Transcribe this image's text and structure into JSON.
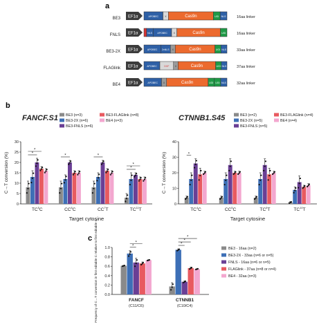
{
  "colors": {
    "be3": "#8a8a8a",
    "be3_2x": "#3d6fb6",
    "fnls": "#6a3f95",
    "flaglink": "#e85a60",
    "be4": "#f3a7cf",
    "ef1a": "#3c3c3c",
    "apobec": "#2e60a6",
    "cas9n": "#ec6a2e",
    "ugi": "#1f9a47",
    "nls": "#2e60a6",
    "flag": "#d63535",
    "linker": "#d9d9d9",
    "linker_long": "#9a9a9a",
    "xhead": "#333333"
  },
  "panel_a": {
    "label": "a",
    "constructs": [
      {
        "name": "BE3",
        "promoter": "EF1α",
        "parts": [
          "APOBEC",
          "X",
          "Cas9n",
          "UGI",
          "NLS"
        ],
        "linker": "16aa linker"
      },
      {
        "name": "FNLS",
        "promoter": "EF1α",
        "parts": [
          "F",
          "NLS",
          "APOBEC",
          "X",
          "Cas9n",
          "UGI"
        ],
        "linker": "16aa linker"
      },
      {
        "name": "BE3-2X",
        "promoter": "EF1α",
        "parts": [
          "APOBEC",
          "2xNLS",
          "X",
          "Cas9n",
          "UGI",
          "NLS"
        ],
        "linker": "33aa linker"
      },
      {
        "name": "FLAGlink",
        "promoter": "EF1α",
        "parts": [
          "APOBEC",
          "DXF",
          "X",
          "Cas9n",
          "UGI",
          "NLS"
        ],
        "linker": "37aa linker"
      },
      {
        "name": "BE4",
        "promoter": "EF1α",
        "parts": [
          "APOBEC",
          "X",
          "Cas9n",
          "UGI",
          "UGI",
          "NLS"
        ],
        "linker": "32aa linker"
      }
    ]
  },
  "panel_b": {
    "label": "b",
    "chart_data": [
      {
        "type": "bar",
        "title": "FANCF.S1",
        "xlabel": "Target cytosine",
        "ylabel": "C→T conversion (%)",
        "ylim": [
          0,
          30
        ],
        "yticks": [
          "0",
          "5",
          "10",
          "15",
          "20",
          "25",
          "30"
        ],
        "categories": [
          "TC5C",
          "CC6C",
          "CC7T",
          "TC11T"
        ],
        "category_labels": [
          {
            "base": "TC",
            "sup": "5",
            "tail": "C"
          },
          {
            "base": "CC",
            "sup": "6",
            "tail": "C"
          },
          {
            "base": "CC",
            "sup": "7",
            "tail": "T"
          },
          {
            "base": "TC",
            "sup": "11",
            "tail": "T"
          }
        ],
        "series": [
          {
            "name": "BE3 (n=3)",
            "values": [
              8,
              8,
              8,
              3
            ],
            "errors": [
              3,
              3,
              3,
              2
            ]
          },
          {
            "name": "BE3-2X (n=6)",
            "values": [
              13,
              12,
              13,
              12
            ],
            "errors": [
              3,
              2,
              2,
              3
            ]
          },
          {
            "name": "BE3-FNLS (n=6)",
            "values": [
              20,
              20,
              20,
              14
            ],
            "errors": [
              2,
              1,
              1,
              1
            ]
          },
          {
            "name": "BE3-FLAGlink (n=8)",
            "values": [
              17,
              15,
              16,
              12
            ],
            "errors": [
              1,
              1,
              1,
              1
            ]
          },
          {
            "name": "BE4 (n=3)",
            "values": [
              16,
              15,
              15,
              12
            ],
            "errors": [
              1,
              1,
              1,
              1
            ]
          }
        ],
        "significance": [
          {
            "category": 0,
            "from": 0,
            "to": 2,
            "label": "*"
          },
          {
            "category": 0,
            "from": 0,
            "to": 3,
            "label": "*"
          },
          {
            "category": 1,
            "from": 0,
            "to": 2,
            "label": "*"
          },
          {
            "category": 2,
            "from": 0,
            "to": 2,
            "label": "*"
          },
          {
            "category": 3,
            "from": 0,
            "to": 2,
            "label": "*"
          },
          {
            "category": 3,
            "from": 0,
            "to": 3,
            "label": "*"
          }
        ],
        "legend_placement": "top"
      },
      {
        "type": "bar",
        "title": "CTNNB1.S45",
        "xlabel": "Target cytosine",
        "ylabel": "C→T conversion (%)",
        "ylim": [
          0,
          40
        ],
        "yticks": [
          "0",
          "10",
          "20",
          "30",
          "40"
        ],
        "categories": [
          "TC4C",
          "CC5C",
          "TC6T",
          "TC10T"
        ],
        "category_labels": [
          {
            "base": "TC",
            "sup": "4",
            "tail": "C"
          },
          {
            "base": "CC",
            "sup": "5",
            "tail": "C"
          },
          {
            "base": "TC",
            "sup": "6",
            "tail": "T"
          },
          {
            "base": "TC",
            "sup": "10",
            "tail": "T"
          }
        ],
        "series": [
          {
            "name": "BE3 (n=2)",
            "values": [
              4,
              4,
              4,
              1
            ],
            "errors": [
              1,
              1,
              1,
              0.5
            ]
          },
          {
            "name": "BE3-2X (n=5)",
            "values": [
              16,
              16,
              16,
              9
            ],
            "errors": [
              4,
              4,
              4,
              2
            ]
          },
          {
            "name": "BE3-FNLS (n=5)",
            "values": [
              26,
              25,
              25,
              14
            ],
            "errors": [
              3,
              4,
              4,
              4
            ]
          },
          {
            "name": "BE3-FLAGlink (n=4)",
            "values": [
              19,
              20,
              19,
              11
            ],
            "errors": [
              4,
              1,
              4,
              1
            ]
          },
          {
            "name": "BE4 (n=4)",
            "values": [
              20,
              20,
              20,
              12
            ],
            "errors": [
              1,
              1,
              1,
              1
            ]
          }
        ],
        "significance": [
          {
            "category": 0,
            "from": 0,
            "to": 1,
            "label": "*"
          }
        ],
        "legend_placement": "top"
      }
    ]
  },
  "panel_c": {
    "label": "c",
    "chart_data": {
      "type": "bar",
      "title": "",
      "ylabel": "Frequency of C→T conversion in first editable C relative to first editable C",
      "ylim": [
        0,
        1
      ],
      "yticks": [
        "0.0",
        "0.2",
        "0.4",
        "0.6",
        "0.8",
        "1.0"
      ],
      "categories": [
        "FANCF",
        "CTNNB1"
      ],
      "category_subs": [
        "(C11/C6)",
        "(C10/C4)"
      ],
      "series": [
        {
          "name": "BE3 - 16aa (n=2)",
          "values": [
            0.61,
            0.17
          ],
          "errors": [
            0.01,
            0.08
          ]
        },
        {
          "name": "BE3-2X - 33aa (n=6 or n=5)",
          "values": [
            0.87,
            0.95
          ],
          "errors": [
            0.06,
            0.02
          ]
        },
        {
          "name": "FNLS - 16aa (n=6 or n=5)",
          "values": [
            0.68,
            0.27
          ],
          "errors": [
            0.09,
            0.02
          ]
        },
        {
          "name": "FLAGlink - 37aa (n=8 or n=4)",
          "values": [
            0.66,
            0.56
          ],
          "errors": [
            0.03,
            0.02
          ]
        },
        {
          "name": "BE4 - 32aa (n=3)",
          "values": [
            0.73,
            0.54
          ],
          "errors": [
            0.01,
            0.01
          ]
        }
      ],
      "significance": [
        {
          "category": 0,
          "from": 1,
          "to": 2,
          "label": "*"
        },
        {
          "category": 0,
          "from": 1,
          "to": 3,
          "label": "*"
        },
        {
          "category": 1,
          "from": 1,
          "to": 2,
          "label": "*"
        },
        {
          "category": 1,
          "from": 1,
          "to": 3,
          "label": "*"
        },
        {
          "category": 1,
          "from": 1,
          "to": 4,
          "label": "*"
        }
      ],
      "legend_placement": "right"
    }
  }
}
